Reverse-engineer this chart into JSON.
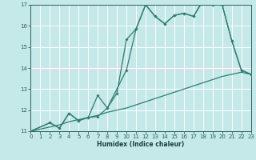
{
  "bg_color": "#c5e8e8",
  "grid_color": "#ffffff",
  "line_color": "#2e7d72",
  "xlabel": "Humidex (Indice chaleur)",
  "xlim": [
    0,
    23
  ],
  "ylim": [
    11,
    17
  ],
  "yticks": [
    11,
    12,
    13,
    14,
    15,
    16,
    17
  ],
  "xticks": [
    0,
    1,
    2,
    3,
    4,
    5,
    6,
    7,
    8,
    9,
    10,
    11,
    12,
    13,
    14,
    15,
    16,
    17,
    18,
    19,
    20,
    21,
    22,
    23
  ],
  "line1_x": [
    0,
    1,
    2,
    3,
    4,
    5,
    6,
    7,
    8,
    9,
    10,
    11,
    12,
    13,
    14,
    15,
    16,
    17,
    18,
    19,
    20,
    21,
    22,
    23
  ],
  "line1_y": [
    11.0,
    11.1,
    11.2,
    11.3,
    11.45,
    11.55,
    11.65,
    11.75,
    11.9,
    12.0,
    12.1,
    12.25,
    12.4,
    12.55,
    12.7,
    12.85,
    13.0,
    13.15,
    13.3,
    13.45,
    13.6,
    13.7,
    13.8,
    13.7
  ],
  "line2_x": [
    0,
    2,
    3,
    4,
    5,
    6,
    7,
    8,
    9,
    10,
    11,
    12,
    13,
    14,
    15,
    16,
    17,
    18,
    19,
    20,
    21,
    22,
    23
  ],
  "line2_y": [
    11.0,
    11.4,
    11.15,
    11.85,
    11.5,
    11.65,
    12.7,
    12.1,
    12.8,
    15.35,
    15.85,
    17.0,
    16.45,
    16.1,
    16.5,
    16.6,
    16.45,
    17.2,
    17.0,
    17.0,
    15.3,
    13.9,
    13.7
  ],
  "line3_x": [
    0,
    2,
    3,
    4,
    5,
    6,
    7,
    8,
    10,
    11,
    12,
    13,
    14,
    15,
    16,
    17,
    18,
    19,
    20,
    21,
    22,
    23
  ],
  "line3_y": [
    11.0,
    11.4,
    11.15,
    11.85,
    11.5,
    11.65,
    11.7,
    12.1,
    13.9,
    15.85,
    17.0,
    16.45,
    16.1,
    16.5,
    16.6,
    16.45,
    17.2,
    17.0,
    17.0,
    15.3,
    13.9,
    13.7
  ]
}
